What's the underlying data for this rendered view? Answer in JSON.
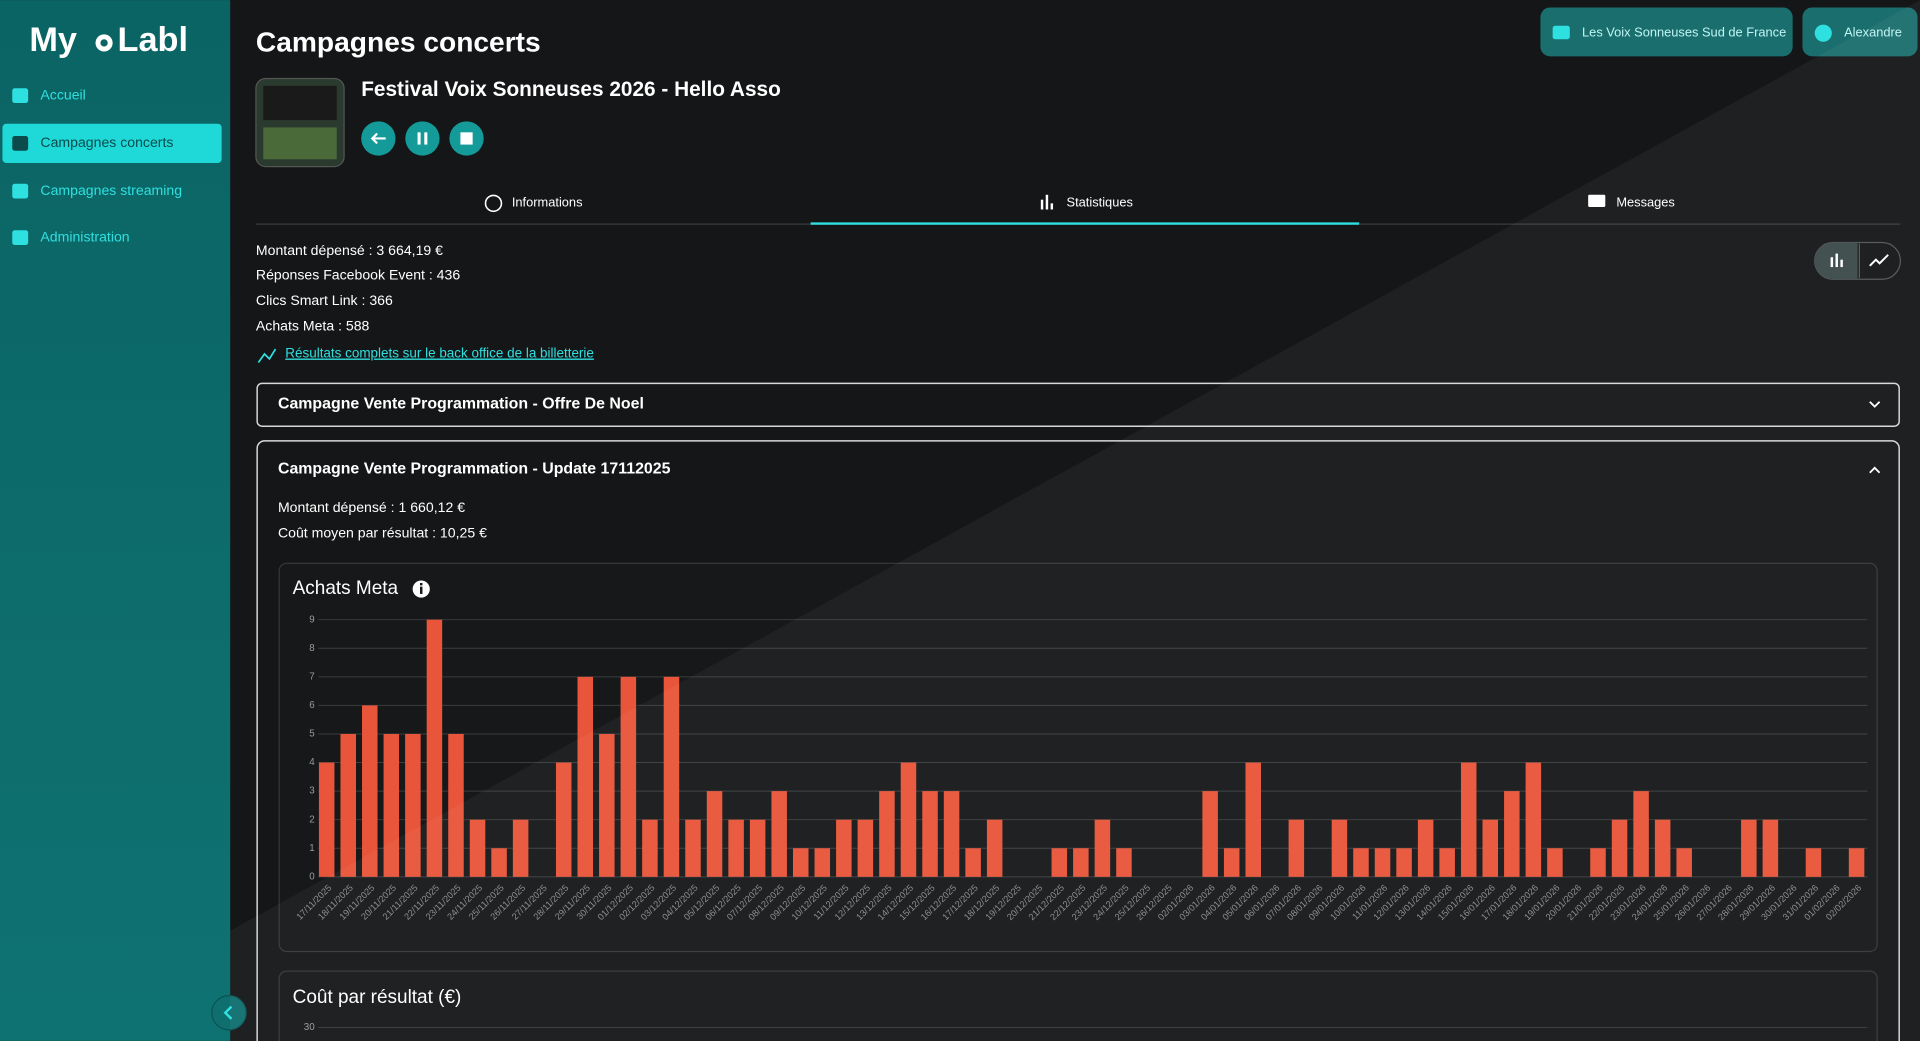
{
  "sidebar": {
    "logo": [
      "My",
      "Labl"
    ],
    "nav": [
      "Accueil",
      "Campagnes concerts",
      "Campagnes streaming",
      "Administration"
    ]
  },
  "header": {
    "page_title": "Campagnes concerts",
    "org_button": "Les Voix Sonneuses Sud de France",
    "user_button": "Alexandre"
  },
  "campaign": {
    "title": "Festival Voix Sonneuses 2026 - Hello Asso"
  },
  "tabs": [
    "Informations",
    "Statistiques",
    "Messages"
  ],
  "stats": [
    "Montant dépensé : 3 664,19 €",
    "Réponses Facebook Event : 436",
    "Clics Smart Link : 366",
    "Achats Meta : 588"
  ],
  "link": "Résultats complets sur le back office de la billetterie",
  "accordions": [
    {
      "title": "Campagne Vente Programmation - Offre De Noel"
    },
    {
      "title": "Campagne Vente Programmation - Update 17112025",
      "stats": [
        "Montant dépensé : 1 660,12 €",
        "Coût moyen par résultat : 10,25 €"
      ]
    }
  ],
  "chart_data": [
    {
      "type": "bar",
      "title": "Achats Meta",
      "color": "#e8553a",
      "grid": true,
      "categories": [
        "17/11/2025",
        "18/11/2025",
        "19/11/2025",
        "20/11/2025",
        "21/11/2025",
        "22/11/2025",
        "23/11/2025",
        "24/11/2025",
        "25/11/2025",
        "26/11/2025",
        "27/11/2025",
        "28/11/2025",
        "29/11/2025",
        "30/11/2025",
        "01/12/2025",
        "02/12/2025",
        "03/12/2025",
        "04/12/2025",
        "05/12/2025",
        "06/12/2025",
        "07/12/2025",
        "08/12/2025",
        "09/12/2025",
        "10/12/2025",
        "11/12/2025",
        "12/12/2025",
        "13/12/2025",
        "14/12/2025",
        "15/12/2025",
        "16/12/2025",
        "17/12/2025",
        "18/12/2025",
        "19/12/2025",
        "20/12/2025",
        "21/12/2025",
        "22/12/2025",
        "23/12/2025",
        "24/12/2025",
        "25/12/2025",
        "26/12/2025",
        "02/01/2026",
        "03/01/2026",
        "04/01/2026",
        "05/01/2026",
        "06/01/2026",
        "07/01/2026",
        "08/01/2026",
        "09/01/2026",
        "10/01/2026",
        "11/01/2026",
        "12/01/2026",
        "13/01/2026",
        "14/01/2026",
        "15/01/2026",
        "16/01/2026",
        "17/01/2026",
        "18/01/2026",
        "19/01/2026",
        "20/01/2026",
        "21/01/2026",
        "22/01/2026",
        "23/01/2026",
        "24/01/2026",
        "25/01/2026",
        "26/01/2026",
        "27/01/2026",
        "28/01/2026",
        "29/01/2026",
        "30/01/2026",
        "31/01/2026",
        "01/02/2026",
        "02/02/2026"
      ],
      "values": [
        4,
        5,
        6,
        5,
        5,
        9,
        5,
        2,
        1,
        2,
        0,
        4,
        7,
        5,
        7,
        2,
        7,
        2,
        3,
        2,
        2,
        3,
        1,
        1,
        2,
        2,
        3,
        4,
        3,
        3,
        1,
        2,
        0,
        0,
        1,
        1,
        2,
        1,
        0,
        0,
        0,
        3,
        1,
        4,
        0,
        2,
        0,
        2,
        1,
        1,
        1,
        2,
        1,
        4,
        2,
        3,
        4,
        1,
        0,
        1,
        2,
        3,
        2,
        1,
        0,
        0,
        2,
        2,
        0,
        1,
        0,
        1
      ],
      "ylim": [
        0,
        9
      ],
      "yticks": [
        0,
        1,
        2,
        3,
        4,
        5,
        6,
        7,
        8,
        9
      ]
    },
    {
      "type": "bar",
      "title": "Coût par résultat (€)",
      "yticks": [
        30
      ]
    }
  ]
}
